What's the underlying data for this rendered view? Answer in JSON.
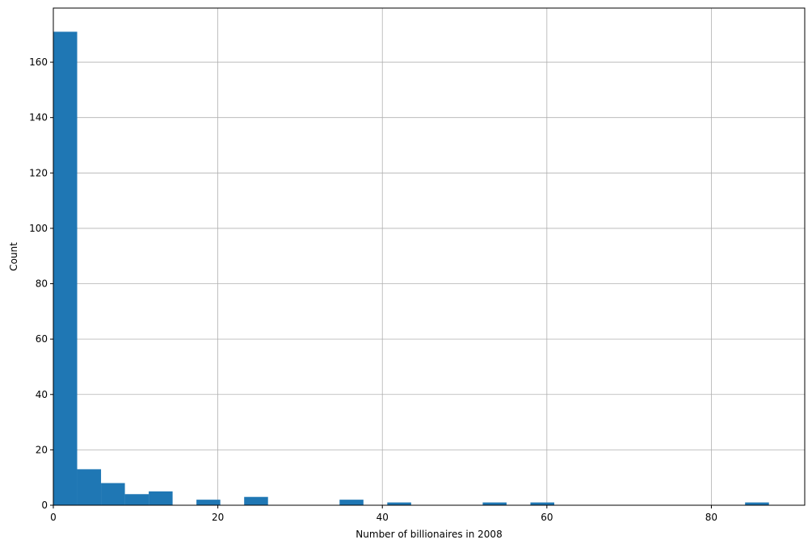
{
  "chart_data": {
    "type": "bar",
    "subtype": "histogram",
    "xlabel": "Number of billionaires in 2008",
    "ylabel": "Count",
    "bin_width": 2.9,
    "bin_start": 0,
    "counts": [
      171,
      13,
      8,
      4,
      5,
      0,
      2,
      0,
      3,
      0,
      0,
      0,
      2,
      0,
      1,
      0,
      0,
      0,
      1,
      0,
      1,
      0,
      0,
      0,
      0,
      0,
      0,
      0,
      0,
      1
    ],
    "xlim": [
      0,
      91.35
    ],
    "ylim": [
      0,
      179.55
    ],
    "xticks": [
      "0",
      "20",
      "40",
      "60",
      "80"
    ],
    "xtick_values": [
      0,
      20,
      40,
      60,
      80
    ],
    "yticks": [
      "0",
      "20",
      "40",
      "60",
      "80",
      "100",
      "120",
      "140",
      "160"
    ],
    "ytick_values": [
      0,
      20,
      40,
      60,
      80,
      100,
      120,
      140,
      160
    ],
    "grid": true,
    "bar_color": "#1f77b4"
  }
}
